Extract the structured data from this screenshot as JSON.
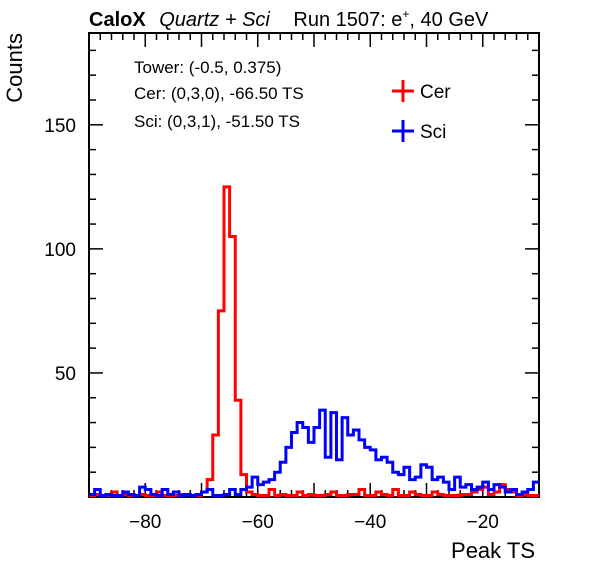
{
  "header": {
    "experiment": "CaloX",
    "detector": "Quartz + Sci",
    "run": "Run 1507: e",
    "run_sup": "+",
    "energy": ", 40 GeV"
  },
  "info": {
    "tower": "Tower: (-0.5, 0.375)",
    "cer": "Cer: (0,3,0), -66.50 TS",
    "sci": "Sci: (0,3,1), -51.50 TS"
  },
  "chart_data": {
    "type": "histogram",
    "xlabel": "Peak TS",
    "ylabel": "Counts",
    "xlim": [
      -90,
      -10
    ],
    "ylim": [
      0,
      187
    ],
    "bin_width": 1,
    "x_ticks": [
      -80,
      -60,
      -40,
      -20
    ],
    "x_tick_labels": [
      "−80",
      "−60",
      "−40",
      "−20"
    ],
    "y_ticks": [
      50,
      100,
      150
    ],
    "y_tick_labels": [
      "50",
      "100",
      "150"
    ],
    "grid": false,
    "legend_position": "top-right",
    "series": [
      {
        "name": "Cer",
        "color": "#ff0000",
        "values": [
          0,
          1,
          0,
          0,
          2,
          0,
          1,
          0,
          0,
          1,
          0,
          0,
          2,
          0,
          0,
          0,
          1,
          1,
          0,
          0,
          2,
          7,
          25,
          75,
          125,
          105,
          39,
          9,
          2,
          1,
          0,
          0,
          3,
          0,
          1,
          0,
          0,
          2,
          0,
          1,
          0,
          0,
          1,
          2,
          0,
          0,
          1,
          1,
          3,
          0,
          0,
          2,
          1,
          0,
          3,
          0,
          0,
          2,
          1,
          0,
          0,
          2,
          1,
          0,
          0,
          0,
          1,
          1,
          2,
          3,
          4,
          1,
          2,
          5,
          3,
          2,
          0,
          1,
          0,
          0
        ]
      },
      {
        "name": "Sci",
        "color": "#0000ff",
        "values": [
          1,
          3,
          0,
          1,
          0,
          0,
          2,
          1,
          0,
          4,
          3,
          1,
          0,
          3,
          1,
          2,
          0,
          1,
          0,
          1,
          2,
          3,
          0,
          0,
          1,
          3,
          1,
          3,
          4,
          8,
          5,
          6,
          7,
          10,
          14,
          20,
          26,
          30,
          28,
          22,
          28,
          35,
          16,
          34,
          15,
          32,
          25,
          27,
          23,
          20,
          19,
          15,
          16,
          14,
          10,
          9,
          12,
          7,
          8,
          13,
          12,
          7,
          8,
          6,
          3,
          8,
          4,
          5,
          3,
          4,
          6,
          3,
          5,
          4,
          2,
          3,
          1,
          2,
          3,
          6
        ]
      }
    ]
  }
}
